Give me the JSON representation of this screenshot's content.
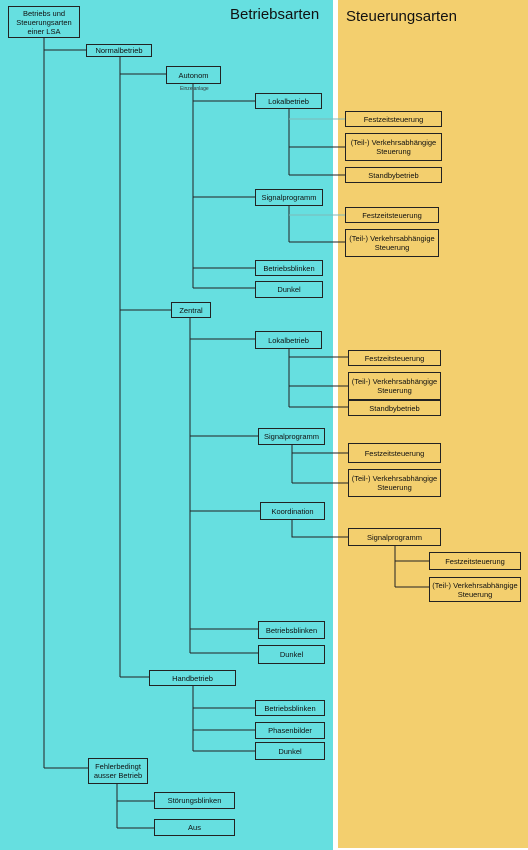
{
  "header": {
    "left_title": "Betriebsarten",
    "right_title": "Steuerungsarten"
  },
  "annotation": "Einzelanlage",
  "nodes": [
    {
      "label": "Betriebs und Steuerungsarten einer LSA"
    },
    {
      "label": "Normalbetrieb"
    },
    {
      "label": "Autonom"
    },
    {
      "label": "Lokalbetrieb"
    },
    {
      "label": "Festzeitsteuerung"
    },
    {
      "label": "(Teil-) Verkehrsabhängige Steuerung"
    },
    {
      "label": "Standbybetrieb"
    },
    {
      "label": "Signalprogramm"
    },
    {
      "label": "Festzeitsteuerung"
    },
    {
      "label": "(Teil-) Verkehrsabhängige Steuerung"
    },
    {
      "label": "Betriebsblinken"
    },
    {
      "label": "Dunkel"
    },
    {
      "label": "Zentral"
    },
    {
      "label": "Lokalbetrieb"
    },
    {
      "label": "Festzeitsteuerung"
    },
    {
      "label": "(Teil-) Verkehrsabhängige Steuerung"
    },
    {
      "label": "Standbybetrieb"
    },
    {
      "label": "Signalprogramm"
    },
    {
      "label": "Festzeitsteuerung"
    },
    {
      "label": "(Teil-) Verkehrsabhängige Steuerung"
    },
    {
      "label": "Koordination"
    },
    {
      "label": "Signalprogramm"
    },
    {
      "label": "Festzeitsteuerung"
    },
    {
      "label": "(Teil-) Verkehrsabhängige Steuerung"
    },
    {
      "label": "Betriebsblinken"
    },
    {
      "label": "Dunkel"
    },
    {
      "label": "Handbetrieb"
    },
    {
      "label": "Betriebsblinken"
    },
    {
      "label": "Phasenbilder"
    },
    {
      "label": "Dunkel"
    },
    {
      "label": "Fehlerbedingt ausser Betrieb"
    },
    {
      "label": "Störungsblinken"
    },
    {
      "label": "Aus"
    }
  ]
}
